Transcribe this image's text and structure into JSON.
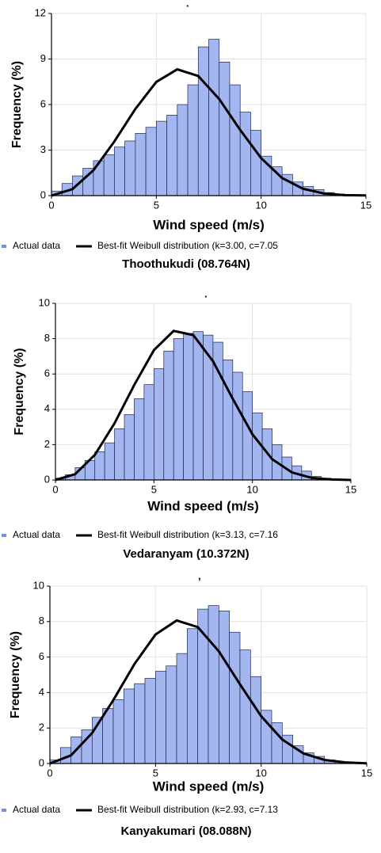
{
  "chart_data": [
    {
      "type": "histogram",
      "annotation": ".",
      "xlabel": "Wind speed (m/s)",
      "ylabel": "Frequency (%)",
      "caption": "Thoothukudi (08.764N)",
      "bins": [
        0,
        0.5,
        1,
        1.5,
        2,
        2.5,
        3,
        3.5,
        4,
        4.5,
        5,
        5.5,
        6,
        6.5,
        7,
        7.5,
        8,
        8.5,
        9,
        9.5,
        10,
        10.5,
        11,
        11.5,
        12,
        12.5,
        13,
        13.5,
        14,
        14.5,
        15
      ],
      "series": [
        {
          "name": "Actual data",
          "color": "#a3b6f0",
          "values": [
            0.3,
            0.8,
            1.3,
            1.8,
            2.3,
            2.7,
            3.2,
            3.6,
            4.1,
            4.5,
            4.9,
            5.3,
            6.0,
            7.3,
            9.8,
            10.3,
            8.8,
            7.3,
            5.5,
            4.3,
            2.6,
            1.9,
            1.4,
            0.9,
            0.6,
            0.4,
            0.2,
            0.1,
            0.05,
            0.02
          ]
        },
        {
          "name": "Best-fit Weibull distribution (k=3.00, c=7.05",
          "type": "line",
          "color": "#000000",
          "x": [
            0,
            1,
            2,
            3,
            4,
            5,
            6,
            7,
            8,
            9,
            10,
            11,
            12,
            13,
            14,
            15
          ],
          "values": [
            0,
            0.43,
            1.67,
            3.57,
            5.71,
            7.49,
            8.32,
            7.88,
            6.36,
            4.33,
            2.47,
            1.16,
            0.45,
            0.14,
            0.03,
            0.01
          ]
        }
      ],
      "xlim": [
        0,
        15
      ],
      "xticks": [
        0,
        5,
        10,
        15
      ],
      "ylim": [
        0,
        12
      ],
      "yticks": [
        0,
        3,
        6,
        9,
        12
      ],
      "grid": true
    },
    {
      "type": "histogram",
      "annotation": ".",
      "xlabel": "Wind speed (m/s)",
      "ylabel": "Frequency (%)",
      "caption": "Vedaranyam (10.372N)",
      "bins": [
        0,
        0.5,
        1,
        1.5,
        2,
        2.5,
        3,
        3.5,
        4,
        4.5,
        5,
        5.5,
        6,
        6.5,
        7,
        7.5,
        8,
        8.5,
        9,
        9.5,
        10,
        10.5,
        11,
        11.5,
        12,
        12.5,
        13,
        13.5,
        14,
        14.5,
        15
      ],
      "series": [
        {
          "name": "Actual data",
          "color": "#a3b6f0",
          "values": [
            0.1,
            0.3,
            0.7,
            1.1,
            1.6,
            2.1,
            2.9,
            3.7,
            4.6,
            5.4,
            6.3,
            7.3,
            8.0,
            8.3,
            8.4,
            8.2,
            7.8,
            6.8,
            6.1,
            5.0,
            3.8,
            2.9,
            2.0,
            1.3,
            0.8,
            0.5,
            0.2,
            0.1,
            0.05,
            0.02
          ]
        },
        {
          "name": "Best-fit Weibull distribution (k=3.13, c=7.16",
          "type": "line",
          "color": "#000000",
          "x": [
            0,
            1,
            2,
            3,
            4,
            5,
            6,
            7,
            8,
            9,
            10,
            11,
            12,
            13,
            14,
            15
          ],
          "values": [
            0,
            0.33,
            1.42,
            3.21,
            5.38,
            7.35,
            8.44,
            8.2,
            6.72,
            4.6,
            2.59,
            1.18,
            0.43,
            0.12,
            0.03,
            0
          ]
        }
      ],
      "xlim": [
        0,
        15
      ],
      "xticks": [
        0,
        5,
        10,
        15
      ],
      "ylim": [
        0,
        10
      ],
      "yticks": [
        0,
        2,
        4,
        6,
        8,
        10
      ],
      "grid": true
    },
    {
      "type": "histogram",
      "annotation": ",",
      "xlabel": "Wind speed (m/s)",
      "ylabel": "Frequency (%)",
      "caption": "Kanyakumari (08.088N)",
      "bins": [
        0,
        0.5,
        1,
        1.5,
        2,
        2.5,
        3,
        3.5,
        4,
        4.5,
        5,
        5.5,
        6,
        6.5,
        7,
        7.5,
        8,
        8.5,
        9,
        9.5,
        10,
        10.5,
        11,
        11.5,
        12,
        12.5,
        13,
        13.5,
        14,
        14.5,
        15
      ],
      "series": [
        {
          "name": "Actual data",
          "color": "#a3b6f0",
          "values": [
            0.2,
            0.9,
            1.5,
            1.9,
            2.6,
            3.1,
            3.6,
            4.2,
            4.5,
            4.8,
            5.2,
            5.5,
            6.2,
            7.6,
            8.7,
            8.9,
            8.6,
            7.4,
            6.4,
            4.9,
            3.0,
            2.3,
            1.6,
            1.0,
            0.6,
            0.4,
            0.2,
            0.1,
            0.05,
            0.02
          ]
        },
        {
          "name": "Best-fit Weibull distribution (k=2.93, c=7.13",
          "type": "line",
          "color": "#000000",
          "x": [
            0,
            1,
            2,
            3,
            4,
            5,
            6,
            7,
            8,
            9,
            10,
            11,
            12,
            13,
            14,
            15
          ],
          "values": [
            0,
            0.46,
            1.72,
            3.57,
            5.6,
            7.27,
            8.06,
            7.69,
            6.32,
            4.46,
            2.67,
            1.35,
            0.57,
            0.2,
            0.06,
            0.01
          ]
        }
      ],
      "xlim": [
        0,
        15
      ],
      "xticks": [
        0,
        5,
        10,
        15
      ],
      "ylim": [
        0,
        10
      ],
      "yticks": [
        0,
        2,
        4,
        6,
        8,
        10
      ],
      "grid": true
    }
  ]
}
